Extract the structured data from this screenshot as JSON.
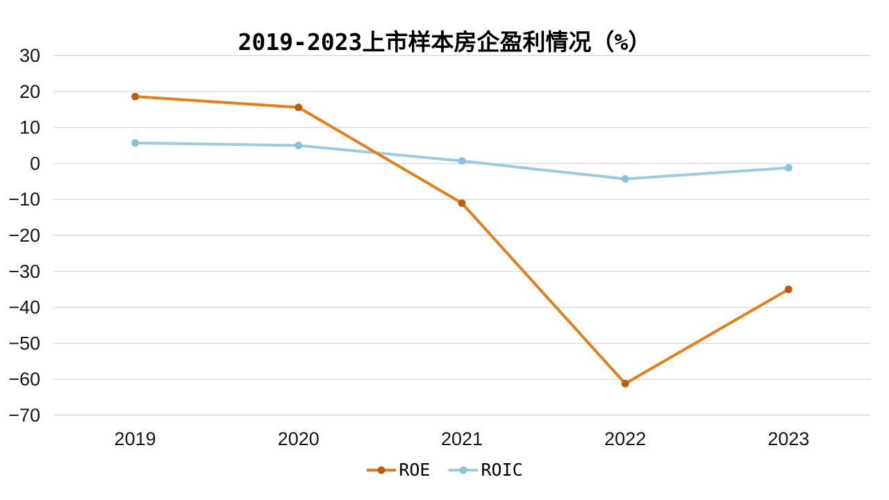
{
  "chart_data": {
    "type": "line",
    "title": "2019-2023上市样本房企盈利情况（%）",
    "categories": [
      "2019",
      "2020",
      "2021",
      "2022",
      "2023"
    ],
    "series": [
      {
        "name": "ROE",
        "values": [
          18.6,
          15.6,
          -11.0,
          -61.2,
          -35.0
        ],
        "line_color": "#E87D13",
        "marker_color": "#C05A0A"
      },
      {
        "name": "ROIC",
        "values": [
          5.7,
          5.0,
          0.7,
          -4.3,
          -1.2
        ],
        "line_color": "#9CCBE4",
        "marker_color": "#8AC2DE"
      }
    ],
    "xlabel": "",
    "ylabel": "",
    "ylim": [
      -70,
      30
    ],
    "y_tick_step": 10,
    "grid": "horizontal-only",
    "gridline_color": "#D9D9D9",
    "background_color": "#FFFFFF",
    "legend_position": "bottom-center"
  }
}
